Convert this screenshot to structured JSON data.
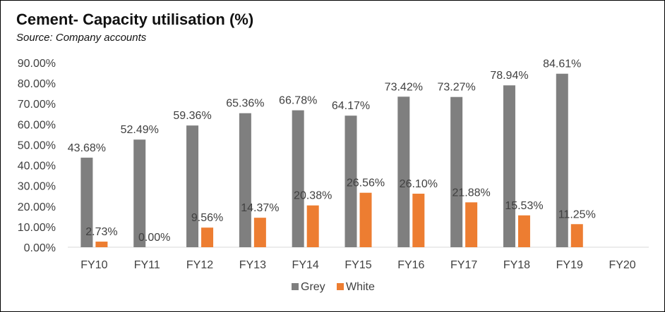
{
  "header": {
    "title": "Cement- Capacity utilisation (%)",
    "subtitle": "Source: Company accounts"
  },
  "colors": {
    "grey": "#7f7f7f",
    "white": "#ed7d31",
    "axis": "#d9d9d9",
    "text": "#404040"
  },
  "chart_data": {
    "type": "bar",
    "title": "Cement- Capacity utilisation (%)",
    "subtitle": "Source: Company accounts",
    "categories": [
      "FY10",
      "FY11",
      "FY12",
      "FY13",
      "FY14",
      "FY15",
      "FY16",
      "FY17",
      "FY18",
      "FY19",
      "FY20"
    ],
    "series": [
      {
        "name": "Grey",
        "values": [
          43.68,
          52.49,
          59.36,
          65.36,
          66.78,
          64.17,
          73.42,
          73.27,
          78.94,
          84.61,
          null
        ],
        "labels": [
          "43.68%",
          "52.49%",
          "59.36%",
          "65.36%",
          "66.78%",
          "64.17%",
          "73.42%",
          "73.27%",
          "78.94%",
          "84.61%",
          null
        ]
      },
      {
        "name": "White",
        "values": [
          2.73,
          0.0,
          9.56,
          14.37,
          20.38,
          26.56,
          26.1,
          21.88,
          15.53,
          11.25,
          null
        ],
        "labels": [
          "2.73%",
          "0.00%",
          "9.56%",
          "14.37%",
          "20.38%",
          "26.56%",
          "26.10%",
          "21.88%",
          "15.53%",
          "11.25%",
          null
        ]
      }
    ],
    "ylim": [
      0,
      90
    ],
    "yticks": [
      "0.00%",
      "10.00%",
      "20.00%",
      "30.00%",
      "40.00%",
      "50.00%",
      "60.00%",
      "70.00%",
      "80.00%",
      "90.00%"
    ],
    "grid": false,
    "legend": "bottom-center",
    "xlabel": "",
    "ylabel": ""
  }
}
